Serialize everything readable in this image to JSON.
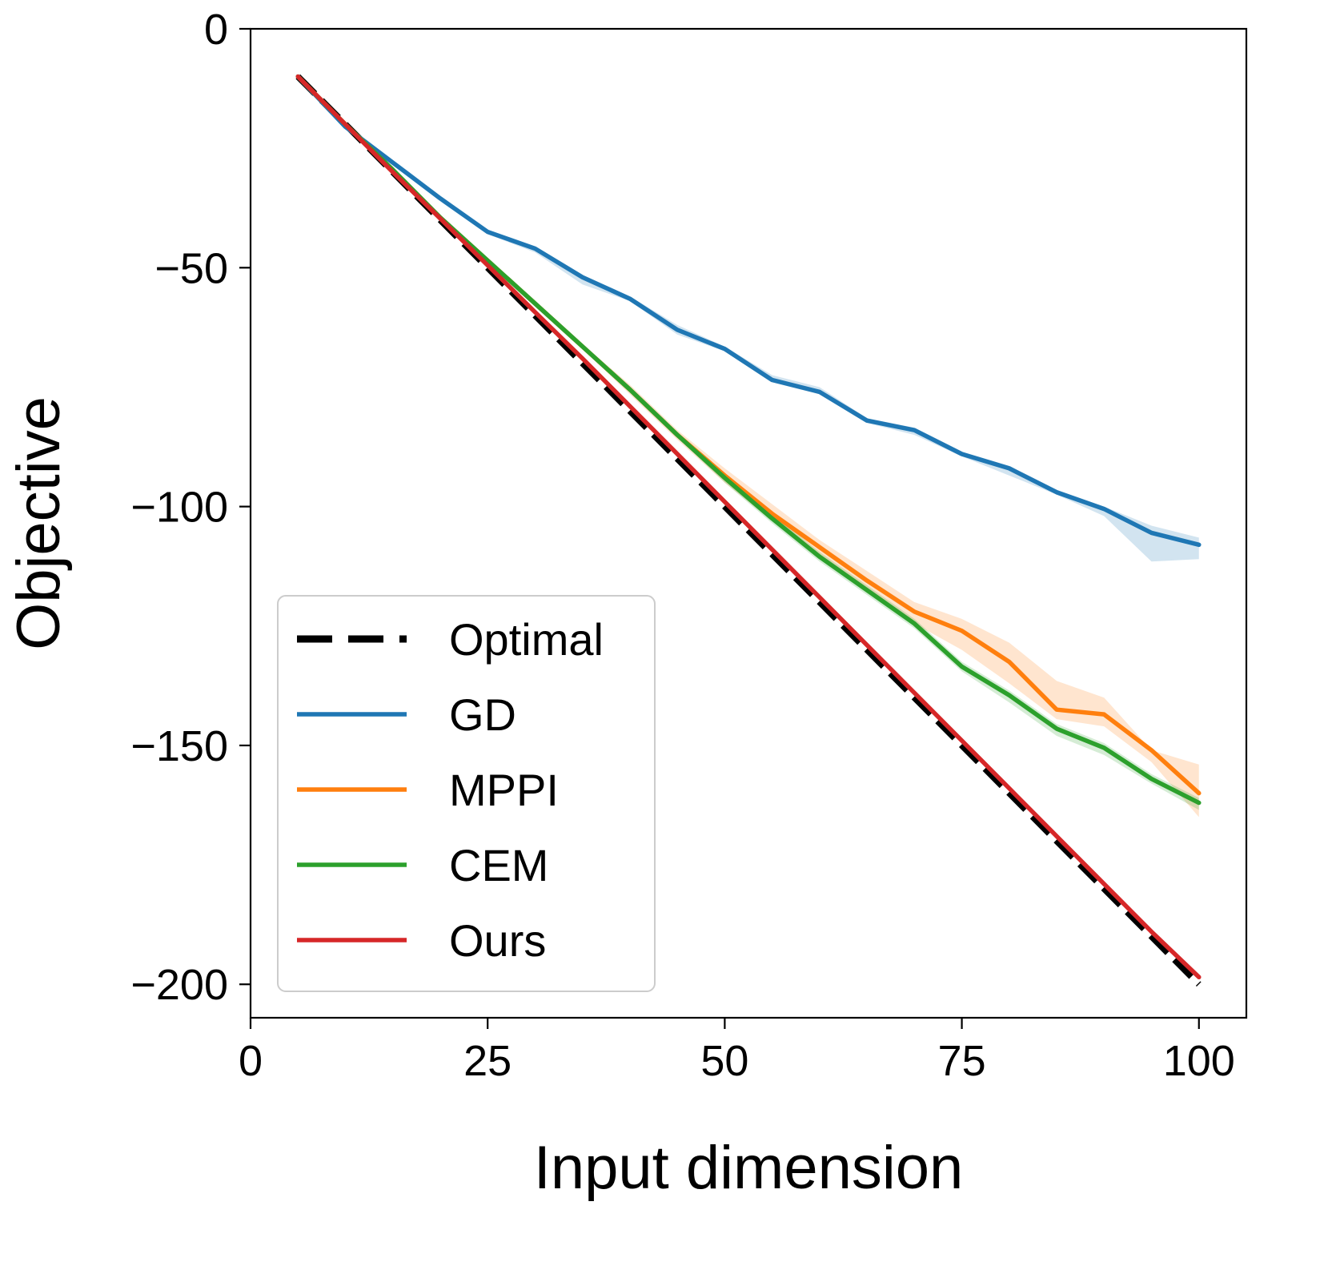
{
  "chart_data": {
    "type": "line",
    "title": "",
    "xlabel": "Input dimension",
    "ylabel": "Objective",
    "xlim": [
      0,
      105
    ],
    "ylim": [
      -207,
      0
    ],
    "xticks": [
      0,
      25,
      50,
      75,
      100
    ],
    "xtick_labels": [
      "0",
      "25",
      "50",
      "75",
      "100"
    ],
    "yticks": [
      0,
      -50,
      -100,
      -150,
      -200
    ],
    "ytick_labels": [
      "0",
      "−50",
      "−100",
      "−150",
      "−200"
    ],
    "grid": false,
    "legend_position": "lower-left",
    "x": [
      5,
      10,
      15,
      20,
      25,
      30,
      35,
      40,
      45,
      50,
      55,
      60,
      65,
      70,
      75,
      80,
      85,
      90,
      95,
      100
    ],
    "series": [
      {
        "name": "Optimal",
        "color": "#000000",
        "style": "dashed",
        "values": [
          -10,
          -20,
          -30,
          -40,
          -50,
          -60,
          -70,
          -80,
          -90,
          -100,
          -110,
          -120,
          -130,
          -140,
          -150,
          -160,
          -170,
          -180,
          -190,
          -200
        ]
      },
      {
        "name": "GD",
        "color": "#1f77b4",
        "style": "solid",
        "values": [
          -10,
          -20.5,
          -28,
          -35.5,
          -42.5,
          -46,
          -52,
          -56.5,
          -63,
          -67,
          -73.5,
          -76,
          -82,
          -84,
          -89,
          -92,
          -97,
          -100.5,
          -105.5,
          -108
        ],
        "band_lower": [
          -10,
          -20.8,
          -28.5,
          -36,
          -43,
          -46.8,
          -53.5,
          -57,
          -64,
          -67.5,
          -74,
          -76.5,
          -82.5,
          -85,
          -89.5,
          -93.5,
          -97.5,
          -102,
          -111.5,
          -111
        ],
        "band_upper": [
          -10,
          -20.2,
          -27.5,
          -35,
          -42,
          -45.5,
          -51.5,
          -56,
          -62,
          -66.5,
          -72.5,
          -75,
          -81.5,
          -83.5,
          -88.5,
          -91.5,
          -96.5,
          -100,
          -104,
          -106.5
        ]
      },
      {
        "name": "MPPI",
        "color": "#ff7f0e",
        "style": "solid",
        "values": [
          -10,
          -20,
          -29.5,
          -39.5,
          -48.5,
          -57.5,
          -66.5,
          -75.5,
          -85,
          -93.5,
          -101.5,
          -108.5,
          -115.5,
          -122,
          -126,
          -132.5,
          -142.5,
          -143.5,
          -151,
          -160
        ],
        "band_lower": [
          -10,
          -20,
          -29.8,
          -40,
          -49,
          -58,
          -67,
          -76.5,
          -86,
          -95,
          -103,
          -110,
          -117.5,
          -124.5,
          -130,
          -137,
          -144.5,
          -146,
          -153.5,
          -165
        ],
        "band_upper": [
          -10,
          -20,
          -29.2,
          -39,
          -48,
          -57,
          -66,
          -74.5,
          -84,
          -92,
          -99.5,
          -107,
          -113.5,
          -120,
          -123.5,
          -128.5,
          -136.5,
          -140,
          -151,
          -154
        ]
      },
      {
        "name": "CEM",
        "color": "#2ca02c",
        "style": "solid",
        "values": [
          -10,
          -20,
          -29.5,
          -39.5,
          -48.5,
          -57.5,
          -66.5,
          -75.5,
          -85,
          -94,
          -102.5,
          -110.5,
          -117.5,
          -124.5,
          -133.5,
          -139.5,
          -146.5,
          -150.5,
          -157,
          -162
        ],
        "band_lower": [
          -10,
          -20,
          -29.7,
          -39.8,
          -49,
          -58,
          -67,
          -76,
          -85.5,
          -95,
          -103.5,
          -111.5,
          -118.5,
          -125.5,
          -134.5,
          -141,
          -148,
          -152,
          -158,
          -163.5
        ],
        "band_upper": [
          -10,
          -20,
          -29.3,
          -39.2,
          -48,
          -57,
          -66,
          -75,
          -84.5,
          -93,
          -101.5,
          -109.5,
          -116.5,
          -123.5,
          -132.5,
          -138.5,
          -145.5,
          -149.5,
          -156,
          -161
        ]
      },
      {
        "name": "Ours",
        "color": "#d62728",
        "style": "solid",
        "values": [
          -10,
          -20,
          -30,
          -39.7,
          -49.5,
          -59.3,
          -69,
          -79,
          -89,
          -99,
          -109,
          -119,
          -129,
          -139,
          -149,
          -159,
          -169,
          -179,
          -189,
          -198.5
        ]
      }
    ]
  }
}
